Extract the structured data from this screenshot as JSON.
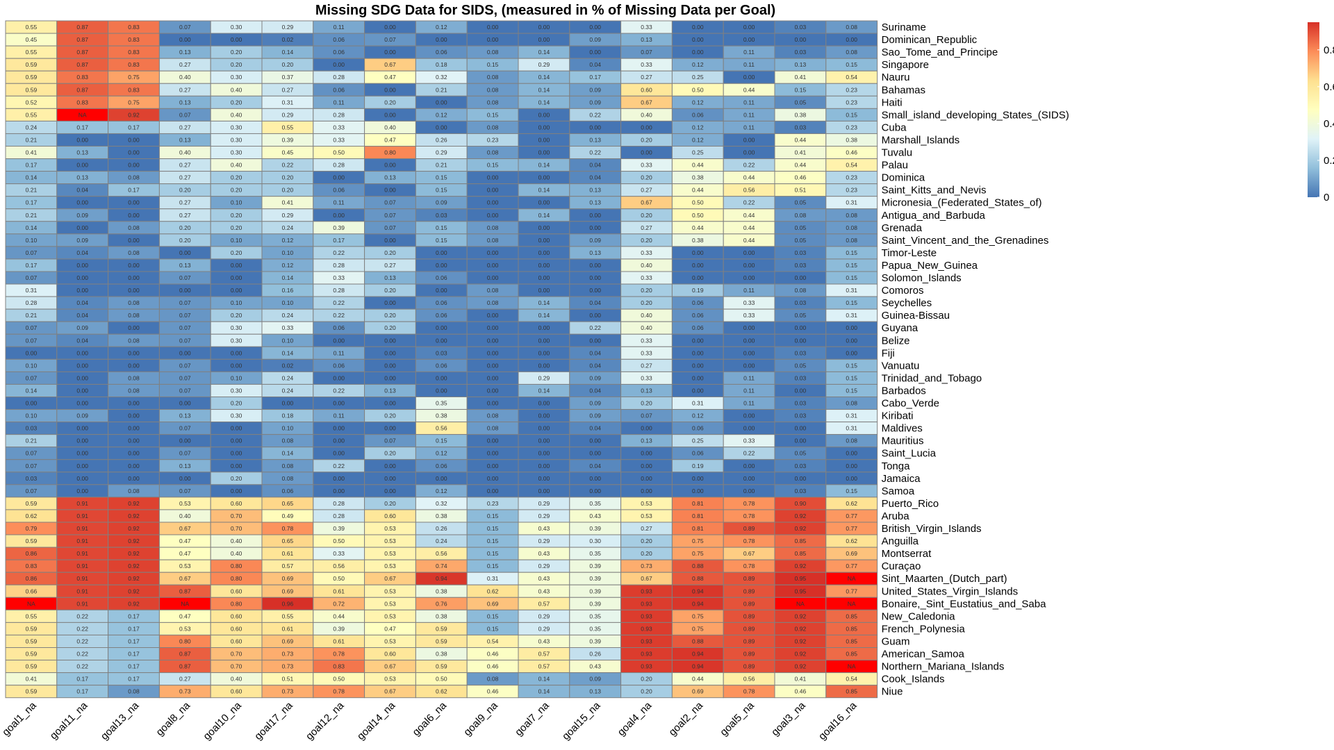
{
  "chart_data": {
    "type": "heatmap",
    "title": "Missing SDG Data for SIDS, (measured in % of Missing Data per Goal)",
    "columns": [
      "goal1_na",
      "goal11_na",
      "goal13_na",
      "goal8_na",
      "goal10_na",
      "goal17_na",
      "goal12_na",
      "goal14_na",
      "goal6_na",
      "goal9_na",
      "goal7_na",
      "goal15_na",
      "goal4_na",
      "goal2_na",
      "goal5_na",
      "goal3_na",
      "goal16_na"
    ],
    "rows": [
      {
        "name": "Suriname",
        "values": [
          0.55,
          0.87,
          0.83,
          0.07,
          0.3,
          0.29,
          0.11,
          0.0,
          0.12,
          0.0,
          0.0,
          0.0,
          0.33,
          0.0,
          0.0,
          0.03,
          0.08
        ]
      },
      {
        "name": "Dominican_Republic",
        "values": [
          0.45,
          0.87,
          0.83,
          0.0,
          0.0,
          0.02,
          0.06,
          0.07,
          0.0,
          0.0,
          0.0,
          0.09,
          0.13,
          0.0,
          0.0,
          0.0,
          0.0
        ]
      },
      {
        "name": "Sao_Tome_and_Principe",
        "values": [
          0.55,
          0.87,
          0.83,
          0.13,
          0.2,
          0.14,
          0.06,
          0.0,
          0.06,
          0.08,
          0.14,
          0.0,
          0.07,
          0.0,
          0.11,
          0.03,
          0.08
        ]
      },
      {
        "name": "Singapore",
        "values": [
          0.59,
          0.87,
          0.83,
          0.27,
          0.2,
          0.2,
          0.0,
          0.67,
          0.18,
          0.15,
          0.29,
          0.04,
          0.33,
          0.12,
          0.11,
          0.13,
          0.15
        ]
      },
      {
        "name": "Nauru",
        "values": [
          0.59,
          0.83,
          0.75,
          0.4,
          0.3,
          0.37,
          0.28,
          0.47,
          0.32,
          0.08,
          0.14,
          0.17,
          0.27,
          0.25,
          0.0,
          0.41,
          0.54
        ]
      },
      {
        "name": "Bahamas",
        "values": [
          0.59,
          0.87,
          0.83,
          0.27,
          0.4,
          0.27,
          0.06,
          0.0,
          0.21,
          0.08,
          0.14,
          0.09,
          0.6,
          0.5,
          0.44,
          0.15,
          0.23
        ]
      },
      {
        "name": "Haiti",
        "values": [
          0.52,
          0.83,
          0.75,
          0.13,
          0.2,
          0.31,
          0.11,
          0.2,
          0.0,
          0.08,
          0.14,
          0.09,
          0.67,
          0.12,
          0.11,
          0.05,
          0.23
        ]
      },
      {
        "name": "Small_island_developing_States_(SIDS)",
        "values": [
          0.55,
          null,
          0.92,
          0.07,
          0.4,
          0.29,
          0.28,
          0.0,
          0.12,
          0.15,
          0.0,
          0.22,
          0.4,
          0.06,
          0.11,
          0.38,
          0.15
        ]
      },
      {
        "name": "Cuba",
        "values": [
          0.24,
          0.17,
          0.17,
          0.27,
          0.3,
          0.55,
          0.33,
          0.4,
          0.0,
          0.08,
          0.0,
          0.0,
          0.0,
          0.12,
          0.11,
          0.03,
          0.23
        ]
      },
      {
        "name": "Marshall_Islands",
        "values": [
          0.21,
          0.0,
          0.0,
          0.13,
          0.3,
          0.39,
          0.33,
          0.47,
          0.26,
          0.23,
          0.0,
          0.13,
          0.2,
          0.12,
          0.0,
          0.44,
          0.38
        ]
      },
      {
        "name": "Tuvalu",
        "values": [
          0.41,
          0.13,
          0.0,
          0.4,
          0.3,
          0.45,
          0.5,
          0.8,
          0.29,
          0.08,
          0.0,
          0.22,
          0.0,
          0.25,
          0.0,
          0.41,
          0.46
        ]
      },
      {
        "name": "Palau",
        "values": [
          0.17,
          0.0,
          0.0,
          0.27,
          0.4,
          0.22,
          0.28,
          0.0,
          0.21,
          0.15,
          0.14,
          0.04,
          0.33,
          0.44,
          0.22,
          0.44,
          0.54
        ]
      },
      {
        "name": "Dominica",
        "values": [
          0.14,
          0.13,
          0.08,
          0.27,
          0.2,
          0.2,
          0.0,
          0.13,
          0.15,
          0.0,
          0.0,
          0.04,
          0.2,
          0.38,
          0.44,
          0.46,
          0.23
        ]
      },
      {
        "name": "Saint_Kitts_and_Nevis",
        "values": [
          0.21,
          0.04,
          0.17,
          0.2,
          0.2,
          0.2,
          0.06,
          0.0,
          0.15,
          0.0,
          0.14,
          0.13,
          0.27,
          0.44,
          0.56,
          0.51,
          0.23
        ]
      },
      {
        "name": "Micronesia_(Federated_States_of)",
        "values": [
          0.17,
          0.0,
          0.0,
          0.27,
          0.1,
          0.41,
          0.11,
          0.07,
          0.09,
          0.0,
          0.0,
          0.13,
          0.67,
          0.5,
          0.22,
          0.05,
          0.31
        ]
      },
      {
        "name": "Antigua_and_Barbuda",
        "values": [
          0.21,
          0.09,
          0.0,
          0.27,
          0.2,
          0.29,
          0.0,
          0.07,
          0.03,
          0.0,
          0.14,
          0.0,
          0.2,
          0.5,
          0.44,
          0.08,
          0.08
        ]
      },
      {
        "name": "Grenada",
        "values": [
          0.14,
          0.0,
          0.08,
          0.2,
          0.2,
          0.24,
          0.39,
          0.07,
          0.15,
          0.08,
          0.0,
          0.0,
          0.27,
          0.44,
          0.44,
          0.05,
          0.08
        ]
      },
      {
        "name": "Saint_Vincent_and_the_Grenadines",
        "values": [
          0.1,
          0.09,
          0.0,
          0.2,
          0.1,
          0.12,
          0.17,
          0.0,
          0.15,
          0.08,
          0.0,
          0.09,
          0.2,
          0.38,
          0.44,
          0.05,
          0.08
        ]
      },
      {
        "name": "Timor-Leste",
        "values": [
          0.07,
          0.04,
          0.08,
          0.0,
          0.2,
          0.1,
          0.22,
          0.2,
          0.0,
          0.0,
          0.0,
          0.13,
          0.33,
          0.0,
          0.0,
          0.03,
          0.15
        ]
      },
      {
        "name": "Papua_New_Guinea",
        "values": [
          0.17,
          0.0,
          0.0,
          0.13,
          0.0,
          0.12,
          0.28,
          0.27,
          0.0,
          0.0,
          0.0,
          0.0,
          0.4,
          0.0,
          0.0,
          0.03,
          0.15
        ]
      },
      {
        "name": "Solomon_Islands",
        "values": [
          0.07,
          0.0,
          0.0,
          0.07,
          0.0,
          0.14,
          0.33,
          0.13,
          0.06,
          0.0,
          0.0,
          0.0,
          0.33,
          0.0,
          0.0,
          0.0,
          0.15
        ]
      },
      {
        "name": "Comoros",
        "values": [
          0.31,
          0.0,
          0.0,
          0.0,
          0.0,
          0.16,
          0.28,
          0.2,
          0.0,
          0.08,
          0.0,
          0.0,
          0.2,
          0.19,
          0.11,
          0.08,
          0.31
        ]
      },
      {
        "name": "Seychelles",
        "values": [
          0.28,
          0.04,
          0.08,
          0.07,
          0.1,
          0.1,
          0.22,
          0.0,
          0.06,
          0.08,
          0.14,
          0.04,
          0.2,
          0.06,
          0.33,
          0.03,
          0.15
        ]
      },
      {
        "name": "Guinea-Bissau",
        "values": [
          0.21,
          0.04,
          0.08,
          0.07,
          0.2,
          0.24,
          0.22,
          0.2,
          0.06,
          0.0,
          0.14,
          0.0,
          0.4,
          0.06,
          0.33,
          0.05,
          0.31
        ]
      },
      {
        "name": "Guyana",
        "values": [
          0.07,
          0.09,
          0.0,
          0.07,
          0.3,
          0.33,
          0.06,
          0.2,
          0.0,
          0.0,
          0.0,
          0.22,
          0.4,
          0.06,
          0.0,
          0.0,
          0.0
        ]
      },
      {
        "name": "Belize",
        "values": [
          0.07,
          0.04,
          0.08,
          0.07,
          0.3,
          0.1,
          0.0,
          0.0,
          0.0,
          0.0,
          0.0,
          0.0,
          0.33,
          0.0,
          0.0,
          0.0,
          0.0
        ]
      },
      {
        "name": "Fiji",
        "values": [
          0.0,
          0.0,
          0.0,
          0.0,
          0.0,
          0.14,
          0.11,
          0.0,
          0.03,
          0.0,
          0.0,
          0.04,
          0.33,
          0.0,
          0.0,
          0.03,
          0.0
        ]
      },
      {
        "name": "Vanuatu",
        "values": [
          0.1,
          0.0,
          0.0,
          0.07,
          0.0,
          0.02,
          0.06,
          0.0,
          0.06,
          0.0,
          0.0,
          0.04,
          0.27,
          0.0,
          0.0,
          0.05,
          0.15
        ]
      },
      {
        "name": "Trinidad_and_Tobago",
        "values": [
          0.07,
          0.0,
          0.08,
          0.07,
          0.1,
          0.24,
          0.0,
          0.0,
          0.0,
          0.0,
          0.29,
          0.09,
          0.33,
          0.0,
          0.11,
          0.03,
          0.15
        ]
      },
      {
        "name": "Barbados",
        "values": [
          0.14,
          0.0,
          0.08,
          0.07,
          0.3,
          0.24,
          0.22,
          0.13,
          0.0,
          0.0,
          0.14,
          0.04,
          0.13,
          0.0,
          0.11,
          0.0,
          0.15
        ]
      },
      {
        "name": "Cabo_Verde",
        "values": [
          0.0,
          0.0,
          0.0,
          0.0,
          0.2,
          0.0,
          0.0,
          0.0,
          0.35,
          0.0,
          0.0,
          0.09,
          0.2,
          0.31,
          0.11,
          0.03,
          0.08
        ]
      },
      {
        "name": "Kiribati",
        "values": [
          0.1,
          0.09,
          0.0,
          0.13,
          0.3,
          0.18,
          0.11,
          0.2,
          0.38,
          0.08,
          0.0,
          0.09,
          0.07,
          0.12,
          0.0,
          0.03,
          0.31
        ]
      },
      {
        "name": "Maldives",
        "values": [
          0.03,
          0.0,
          0.0,
          0.07,
          0.0,
          0.1,
          0.0,
          0.0,
          0.56,
          0.08,
          0.0,
          0.04,
          0.0,
          0.06,
          0.0,
          0.0,
          0.31
        ]
      },
      {
        "name": "Mauritius",
        "values": [
          0.21,
          0.0,
          0.0,
          0.0,
          0.0,
          0.08,
          0.0,
          0.07,
          0.15,
          0.0,
          0.0,
          0.0,
          0.13,
          0.25,
          0.33,
          0.0,
          0.08
        ]
      },
      {
        "name": "Saint_Lucia",
        "values": [
          0.07,
          0.0,
          0.0,
          0.07,
          0.0,
          0.14,
          0.0,
          0.2,
          0.12,
          0.0,
          0.0,
          0.0,
          0.0,
          0.06,
          0.22,
          0.05,
          0.0
        ]
      },
      {
        "name": "Tonga",
        "values": [
          0.07,
          0.0,
          0.0,
          0.13,
          0.0,
          0.08,
          0.22,
          0.0,
          0.06,
          0.0,
          0.0,
          0.04,
          0.0,
          0.19,
          0.0,
          0.03,
          0.0
        ]
      },
      {
        "name": "Jamaica",
        "values": [
          0.03,
          0.0,
          0.0,
          0.0,
          0.2,
          0.08,
          0.0,
          0.0,
          0.0,
          0.0,
          0.0,
          0.0,
          0.0,
          0.0,
          0.0,
          0.0,
          0.0
        ]
      },
      {
        "name": "Samoa",
        "values": [
          0.07,
          0.0,
          0.08,
          0.07,
          0.0,
          0.06,
          0.0,
          0.0,
          0.12,
          0.0,
          0.0,
          0.0,
          0.0,
          0.0,
          0.0,
          0.03,
          0.15
        ]
      },
      {
        "name": "Puerto_Rico",
        "values": [
          0.59,
          0.91,
          0.92,
          0.53,
          0.6,
          0.65,
          0.28,
          0.2,
          0.32,
          0.23,
          0.29,
          0.35,
          0.53,
          0.81,
          0.78,
          0.9,
          0.62
        ]
      },
      {
        "name": "Aruba",
        "values": [
          0.62,
          0.91,
          0.92,
          0.4,
          0.7,
          0.49,
          0.28,
          0.6,
          0.38,
          0.15,
          0.29,
          0.43,
          0.53,
          0.81,
          0.78,
          0.92,
          0.77
        ]
      },
      {
        "name": "British_Virgin_Islands",
        "values": [
          0.79,
          0.91,
          0.92,
          0.67,
          0.7,
          0.78,
          0.39,
          0.53,
          0.26,
          0.15,
          0.43,
          0.39,
          0.27,
          0.81,
          0.89,
          0.92,
          0.77
        ]
      },
      {
        "name": "Anguilla",
        "values": [
          0.59,
          0.91,
          0.92,
          0.47,
          0.4,
          0.65,
          0.5,
          0.53,
          0.24,
          0.15,
          0.29,
          0.3,
          0.2,
          0.75,
          0.78,
          0.85,
          0.62
        ]
      },
      {
        "name": "Montserrat",
        "values": [
          0.86,
          0.91,
          0.92,
          0.47,
          0.4,
          0.61,
          0.33,
          0.53,
          0.56,
          0.15,
          0.43,
          0.35,
          0.2,
          0.75,
          0.67,
          0.85,
          0.69
        ]
      },
      {
        "name": "Curaçao",
        "values": [
          0.83,
          0.91,
          0.92,
          0.53,
          0.8,
          0.57,
          0.56,
          0.53,
          0.74,
          0.15,
          0.29,
          0.39,
          0.73,
          0.88,
          0.78,
          0.92,
          0.77
        ]
      },
      {
        "name": "Sint_Maarten_(Dutch_part)",
        "values": [
          0.86,
          0.91,
          0.92,
          0.67,
          0.8,
          0.69,
          0.5,
          0.67,
          0.94,
          0.31,
          0.43,
          0.39,
          0.67,
          0.88,
          0.89,
          0.95,
          null
        ]
      },
      {
        "name": "United_States_Virgin_Islands",
        "values": [
          0.66,
          0.91,
          0.92,
          0.87,
          0.6,
          0.69,
          0.61,
          0.53,
          0.38,
          0.62,
          0.43,
          0.39,
          0.93,
          0.94,
          0.89,
          0.95,
          0.77
        ]
      },
      {
        "name": "Bonaire,_Sint_Eustatius_and_Saba",
        "values": [
          null,
          0.91,
          0.92,
          null,
          0.8,
          0.96,
          0.72,
          0.53,
          0.76,
          0.69,
          0.57,
          0.39,
          0.93,
          0.94,
          0.89,
          null,
          null
        ]
      },
      {
        "name": "New_Caledonia",
        "values": [
          0.55,
          0.22,
          0.17,
          0.47,
          0.6,
          0.55,
          0.44,
          0.53,
          0.38,
          0.15,
          0.29,
          0.35,
          0.93,
          0.75,
          0.89,
          0.92,
          0.85
        ]
      },
      {
        "name": "French_Polynesia",
        "values": [
          0.59,
          0.22,
          0.17,
          0.53,
          0.6,
          0.61,
          0.39,
          0.47,
          0.59,
          0.15,
          0.29,
          0.35,
          0.93,
          0.75,
          0.89,
          0.92,
          0.85
        ]
      },
      {
        "name": "Guam",
        "values": [
          0.59,
          0.22,
          0.17,
          0.8,
          0.6,
          0.69,
          0.61,
          0.53,
          0.59,
          0.54,
          0.43,
          0.39,
          0.93,
          0.88,
          0.89,
          0.92,
          0.85
        ]
      },
      {
        "name": "American_Samoa",
        "values": [
          0.59,
          0.22,
          0.17,
          0.87,
          0.7,
          0.73,
          0.78,
          0.6,
          0.38,
          0.46,
          0.57,
          0.26,
          0.93,
          0.94,
          0.89,
          0.92,
          0.85
        ]
      },
      {
        "name": "Northern_Mariana_Islands",
        "values": [
          0.59,
          0.22,
          0.17,
          0.87,
          0.7,
          0.73,
          0.83,
          0.67,
          0.59,
          0.46,
          0.57,
          0.43,
          0.93,
          0.94,
          0.89,
          0.92,
          null
        ]
      },
      {
        "name": "Cook_Islands",
        "values": [
          0.41,
          0.17,
          0.17,
          0.27,
          0.4,
          0.51,
          0.5,
          0.53,
          0.5,
          0.08,
          0.14,
          0.09,
          0.2,
          0.44,
          0.56,
          0.41,
          0.54
        ]
      },
      {
        "name": "Niue",
        "values": [
          0.59,
          0.17,
          0.08,
          0.73,
          0.6,
          0.73,
          0.78,
          0.67,
          0.62,
          0.46,
          0.14,
          0.13,
          0.2,
          0.69,
          0.78,
          0.46,
          0.85
        ]
      }
    ],
    "na_label": "NA",
    "na_color": "#ff0000",
    "colorscale": [
      "#4575b4",
      "#91bfdb",
      "#e0f3f8",
      "#ffffbf",
      "#fee090",
      "#fc8d59",
      "#d73027"
    ],
    "value_range": [
      0,
      0.95
    ],
    "legend_ticks": [
      "0",
      "0.2",
      "0.4",
      "0.6",
      "0.8"
    ],
    "legend_placement": "top-right",
    "grid_color": "#808080"
  }
}
